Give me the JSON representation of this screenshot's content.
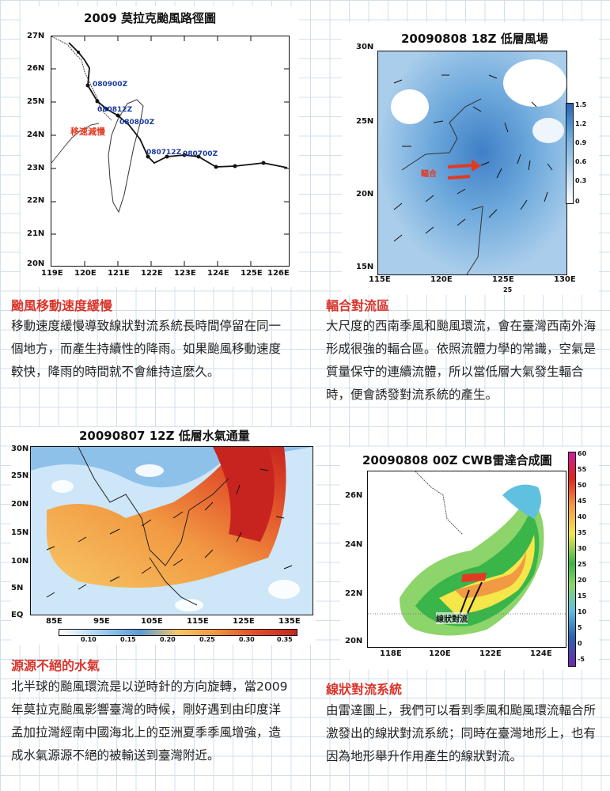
{
  "panel1": {
    "title": "2009 莫拉克颱風路徑圖",
    "lat_ticks": [
      "27N",
      "26N",
      "25N",
      "24N",
      "23N",
      "22N",
      "21N",
      "20N"
    ],
    "lon_ticks": [
      "119E",
      "120E",
      "121E",
      "122E",
      "123E",
      "124E",
      "125E",
      "126E"
    ],
    "labels": [
      "080900Z",
      "080812Z",
      "080800Z",
      "080712Z",
      "080700Z"
    ],
    "note": "移速減慢"
  },
  "panel2": {
    "title": "20090808 18Z 低層風場",
    "lat_ticks": [
      "30N",
      "25N",
      "20N",
      "15N"
    ],
    "lon_ticks": [
      "115E",
      "120E",
      "125E",
      "130E"
    ],
    "colorbar": [
      "1.5",
      "1.2",
      "0.9",
      "0.6",
      "0.3",
      "0"
    ],
    "note": "輻合",
    "ref": "25"
  },
  "panel3": {
    "title": "20090807 12Z 低層水氣通量",
    "lat_ticks": [
      "30N",
      "25N",
      "20N",
      "15N",
      "10N",
      "5N",
      "EQ"
    ],
    "lon_ticks": [
      "85E",
      "95E",
      "105E",
      "115E",
      "125E",
      "135E"
    ],
    "colorbar": [
      "0.10",
      "0.15",
      "0.20",
      "0.25",
      "0.30",
      "0.35"
    ]
  },
  "panel4": {
    "title": "20090808 00Z CWB雷達合成圖",
    "lat_ticks": [
      "26N",
      "24N",
      "22N",
      "20N"
    ],
    "lon_ticks": [
      "118E",
      "120E",
      "122E",
      "124E"
    ],
    "colorbar": [
      "60",
      "55",
      "50",
      "45",
      "40",
      "35",
      "30",
      "25",
      "20",
      "15",
      "10",
      "5",
      "0",
      "-5"
    ],
    "note": "線狀對流"
  },
  "sections": [
    {
      "heading": "颱風移動速度緩慢",
      "text": "移動速度緩慢導致線狀對流系統長時間停留在同一個地方，而產生持續性的降雨。如果颱風移動速度較快，降雨的時間就不會維持這麼久。"
    },
    {
      "heading": "輻合對流區",
      "text": "大尺度的西南季風和颱風環流，會在臺灣西南外海形成很強的輻合區。依照流體力學的常識，空氣是質量保守的連續流體，所以當低層大氣發生輻合時，便會誘發對流系統的產生。"
    },
    {
      "heading": "源源不絕的水氣",
      "text": "北半球的颱風環流是以逆時針的方向旋轉，當2009 年莫拉克颱風影響臺灣的時候，剛好遇到由印度洋孟加拉灣經南中國海北上的亞洲夏季季風增強，造成水氣源源不絕的被輸送到臺灣附近。"
    },
    {
      "heading": "線狀對流系統",
      "text": "由雷達圖上，我們可以看到季風和颱風環流輻合所激發出的線狀對流系統；同時在臺灣地形上，也有因為地形舉升作用產生的線狀對流。"
    }
  ]
}
